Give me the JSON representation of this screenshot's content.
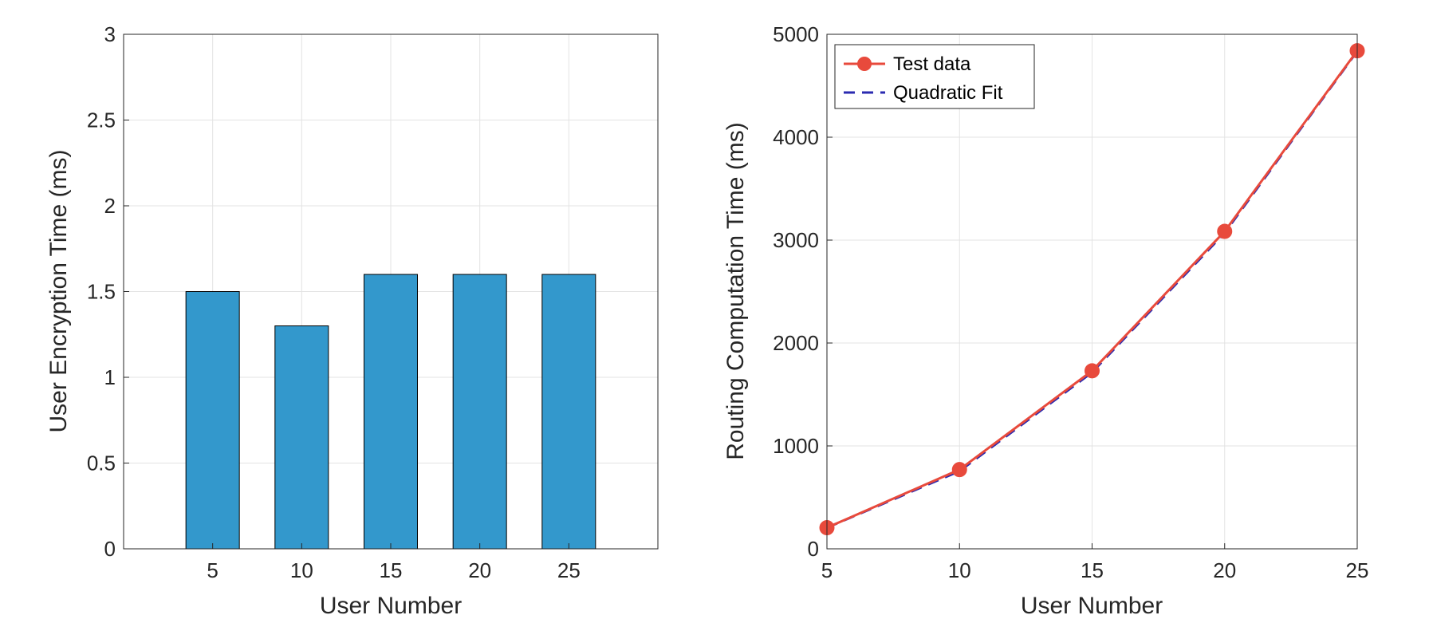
{
  "chart_data": [
    {
      "type": "bar",
      "title": "",
      "xlabel": "User Number",
      "ylabel": "User Encryption Time (ms)",
      "categories": [
        "5",
        "10",
        "15",
        "20",
        "25"
      ],
      "values": [
        1.5,
        1.3,
        1.6,
        1.6,
        1.6
      ],
      "xlim": [
        0,
        30
      ],
      "ylim": [
        0,
        3
      ],
      "yticks": [
        "0",
        "0.5",
        "1",
        "1.5",
        "2",
        "2.5",
        "3"
      ],
      "grid": true,
      "bar_color": "#3398cc"
    },
    {
      "type": "line",
      "title": "",
      "xlabel": "User Number",
      "ylabel": "Routing Computation Time (ms)",
      "x": [
        5,
        10,
        15,
        20,
        25
      ],
      "xlim": [
        5,
        25
      ],
      "ylim": [
        0,
        5000
      ],
      "xticks": [
        "5",
        "10",
        "15",
        "20",
        "25"
      ],
      "yticks": [
        "0",
        "1000",
        "2000",
        "3000",
        "4000",
        "5000"
      ],
      "grid": true,
      "legend_position": "top-left",
      "series": [
        {
          "name": "Test data",
          "values": [
            205,
            770,
            1730,
            3085,
            4840
          ],
          "color": "#e84a3c",
          "style": "solid-markers"
        },
        {
          "name": "Quadratic Fit",
          "values": [
            205,
            755,
            1715,
            3070,
            4835
          ],
          "color": "#2b2bb0",
          "style": "dashed"
        }
      ]
    }
  ]
}
